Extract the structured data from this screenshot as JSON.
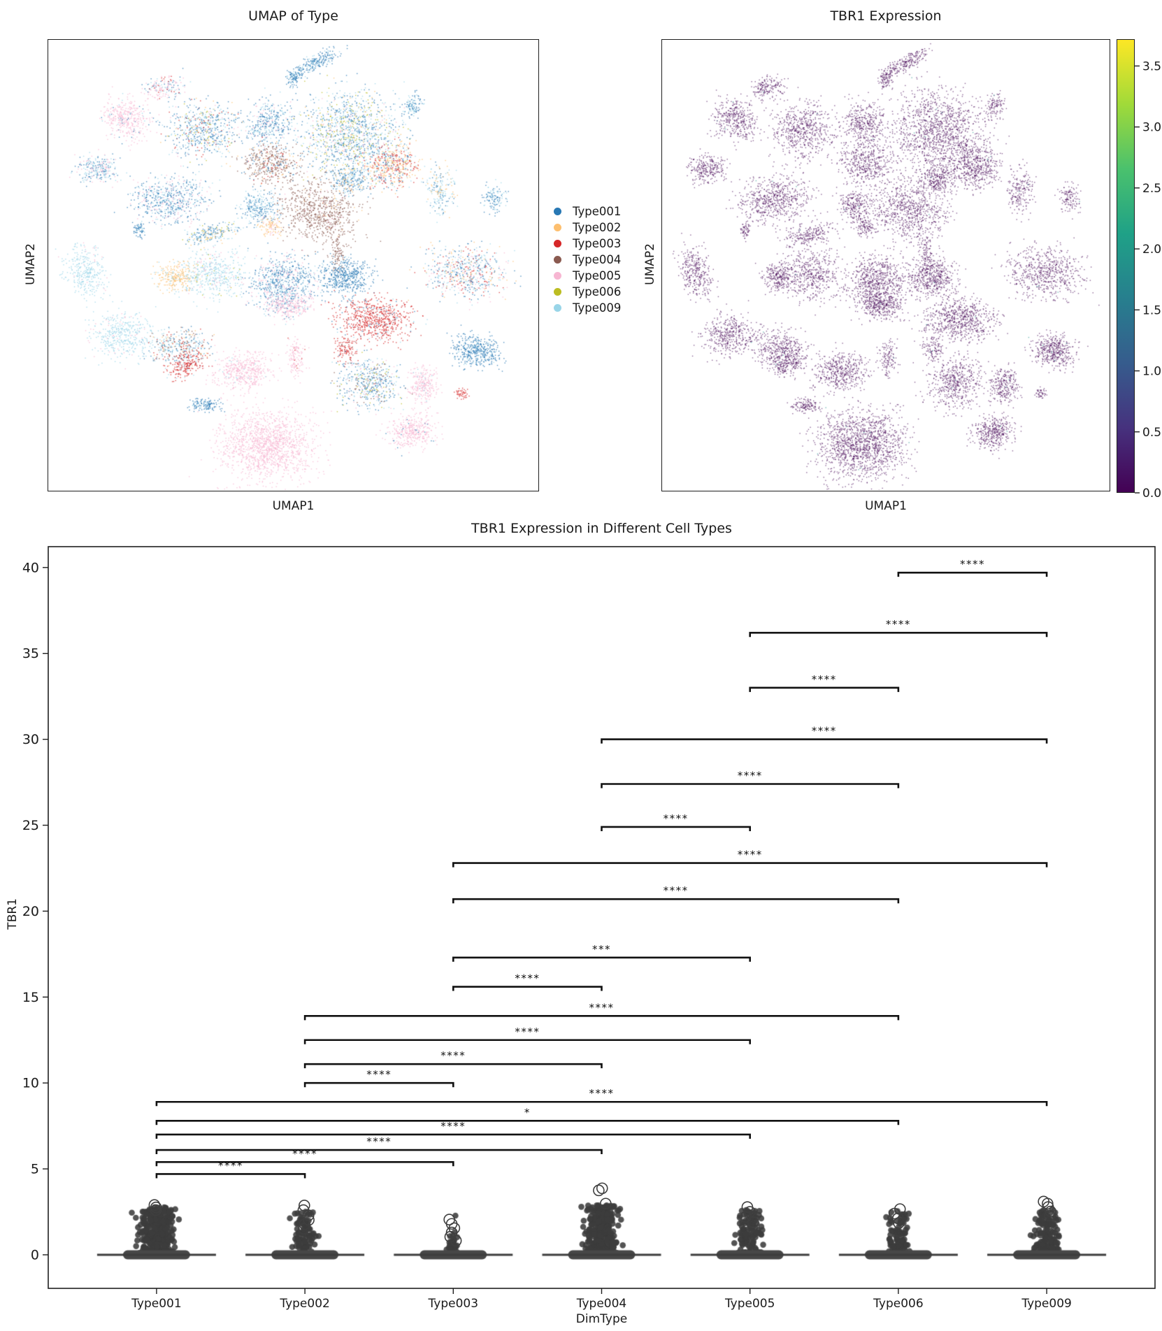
{
  "figure": {
    "background": "#ffffff"
  },
  "chart_data": [
    {
      "type": "scatter",
      "title": "UMAP of Type",
      "xlabel": "UMAP1",
      "ylabel": "UMAP2",
      "legend": [
        "Type001",
        "Type002",
        "Type003",
        "Type004",
        "Type005",
        "Type006",
        "Type009"
      ],
      "palette": {
        "Type001": "#2878b4",
        "Type002": "#fdbf6f",
        "Type003": "#d62728",
        "Type004": "#8a5a50",
        "Type005": "#f7b6d2",
        "Type006": "#bcbd22",
        "Type009": "#99d5e8"
      },
      "clusters": [
        {
          "x": 0.545,
          "y": 0.05,
          "rx": 0.055,
          "ry": 0.016,
          "rot": -28,
          "n": 220,
          "mix": {
            "Type001": 0.75,
            "Type009": 0.25
          }
        },
        {
          "x": 0.5,
          "y": 0.085,
          "rx": 0.015,
          "ry": 0.022,
          "rot": 0,
          "n": 90,
          "mix": {
            "Type001": 0.8,
            "Type009": 0.2
          }
        },
        {
          "x": 0.235,
          "y": 0.105,
          "rx": 0.038,
          "ry": 0.024,
          "rot": -15,
          "n": 170,
          "mix": {
            "Type005": 0.55,
            "Type001": 0.2,
            "Type009": 0.15,
            "Type003": 0.1
          }
        },
        {
          "x": 0.16,
          "y": 0.175,
          "rx": 0.05,
          "ry": 0.042,
          "rot": 20,
          "n": 380,
          "mix": {
            "Type005": 0.9,
            "Type001": 0.05,
            "Type009": 0.05
          }
        },
        {
          "x": 0.1,
          "y": 0.285,
          "rx": 0.042,
          "ry": 0.03,
          "rot": 0,
          "n": 260,
          "mix": {
            "Type001": 0.35,
            "Type005": 0.3,
            "Type009": 0.35
          }
        },
        {
          "x": 0.315,
          "y": 0.2,
          "rx": 0.068,
          "ry": 0.058,
          "rot": 0,
          "n": 600,
          "mix": {
            "Type001": 0.55,
            "Type009": 0.2,
            "Type002": 0.09,
            "Type003": 0.07,
            "Type006": 0.05,
            "Type005": 0.04
          }
        },
        {
          "x": 0.45,
          "y": 0.185,
          "rx": 0.048,
          "ry": 0.048,
          "rot": 0,
          "n": 380,
          "mix": {
            "Type001": 0.6,
            "Type009": 0.28,
            "Type005": 0.12
          }
        },
        {
          "x": 0.615,
          "y": 0.205,
          "rx": 0.105,
          "ry": 0.092,
          "rot": 0,
          "n": 1300,
          "mix": {
            "Type001": 0.42,
            "Type009": 0.3,
            "Type006": 0.13,
            "Type005": 0.08,
            "Type002": 0.07
          }
        },
        {
          "x": 0.7,
          "y": 0.28,
          "rx": 0.055,
          "ry": 0.05,
          "rot": 0,
          "n": 500,
          "mix": {
            "Type002": 0.38,
            "Type003": 0.38,
            "Type001": 0.12,
            "Type009": 0.12
          }
        },
        {
          "x": 0.455,
          "y": 0.275,
          "rx": 0.058,
          "ry": 0.042,
          "rot": 0,
          "n": 420,
          "mix": {
            "Type004": 0.72,
            "Type001": 0.14,
            "Type002": 0.07,
            "Type003": 0.07
          }
        },
        {
          "x": 0.555,
          "y": 0.38,
          "rx": 0.08,
          "ry": 0.065,
          "rot": 10,
          "n": 750,
          "mix": {
            "Type004": 0.9,
            "Type005": 0.05,
            "Type002": 0.05
          }
        },
        {
          "x": 0.59,
          "y": 0.475,
          "rx": 0.014,
          "ry": 0.045,
          "rot": 0,
          "n": 90,
          "mix": {
            "Type004": 1
          }
        },
        {
          "x": 0.25,
          "y": 0.355,
          "rx": 0.078,
          "ry": 0.052,
          "rot": -8,
          "n": 620,
          "mix": {
            "Type001": 0.5,
            "Type009": 0.28,
            "Type005": 0.22
          }
        },
        {
          "x": 0.33,
          "y": 0.43,
          "rx": 0.055,
          "ry": 0.02,
          "rot": -12,
          "n": 220,
          "mix": {
            "Type001": 0.45,
            "Type009": 0.3,
            "Type006": 0.1,
            "Type002": 0.15
          }
        },
        {
          "x": 0.43,
          "y": 0.37,
          "rx": 0.038,
          "ry": 0.036,
          "rot": 0,
          "n": 260,
          "mix": {
            "Type001": 0.6,
            "Type009": 0.4
          }
        },
        {
          "x": 0.455,
          "y": 0.415,
          "rx": 0.022,
          "ry": 0.02,
          "rot": 0,
          "n": 100,
          "mix": {
            "Type002": 0.8,
            "Type005": 0.2
          }
        },
        {
          "x": 0.075,
          "y": 0.515,
          "rx": 0.038,
          "ry": 0.058,
          "rot": -25,
          "n": 320,
          "mix": {
            "Type009": 0.96,
            "Type005": 0.04
          }
        },
        {
          "x": 0.26,
          "y": 0.525,
          "rx": 0.038,
          "ry": 0.032,
          "rot": 0,
          "n": 260,
          "mix": {
            "Type002": 0.85,
            "Type009": 0.15
          }
        },
        {
          "x": 0.335,
          "y": 0.52,
          "rx": 0.062,
          "ry": 0.058,
          "rot": 0,
          "n": 480,
          "mix": {
            "Type009": 0.85,
            "Type005": 0.1,
            "Type006": 0.05
          }
        },
        {
          "x": 0.48,
          "y": 0.54,
          "rx": 0.068,
          "ry": 0.062,
          "rot": 0,
          "n": 750,
          "mix": {
            "Type001": 0.6,
            "Type009": 0.22,
            "Type005": 0.18
          }
        },
        {
          "x": 0.49,
          "y": 0.59,
          "rx": 0.048,
          "ry": 0.028,
          "rot": 0,
          "n": 280,
          "mix": {
            "Type005": 0.85,
            "Type009": 0.15
          }
        },
        {
          "x": 0.605,
          "y": 0.525,
          "rx": 0.052,
          "ry": 0.042,
          "rot": 0,
          "n": 480,
          "mix": {
            "Type001": 0.92,
            "Type009": 0.08
          }
        },
        {
          "x": 0.665,
          "y": 0.62,
          "rx": 0.078,
          "ry": 0.047,
          "rot": 0,
          "n": 700,
          "mix": {
            "Type003": 0.85,
            "Type001": 0.08,
            "Type009": 0.07
          }
        },
        {
          "x": 0.855,
          "y": 0.515,
          "rx": 0.082,
          "ry": 0.055,
          "rot": 0,
          "n": 620,
          "mix": {
            "Type001": 0.3,
            "Type009": 0.25,
            "Type005": 0.18,
            "Type003": 0.15,
            "Type002": 0.12
          }
        },
        {
          "x": 0.15,
          "y": 0.655,
          "rx": 0.062,
          "ry": 0.05,
          "rot": 0,
          "n": 420,
          "mix": {
            "Type009": 0.92,
            "Type005": 0.08
          }
        },
        {
          "x": 0.265,
          "y": 0.68,
          "rx": 0.06,
          "ry": 0.04,
          "rot": 0,
          "n": 360,
          "mix": {
            "Type009": 0.35,
            "Type004": 0.25,
            "Type001": 0.2,
            "Type002": 0.12,
            "Type003": 0.08
          }
        },
        {
          "x": 0.28,
          "y": 0.72,
          "rx": 0.038,
          "ry": 0.026,
          "rot": -18,
          "n": 220,
          "mix": {
            "Type003": 0.85,
            "Type009": 0.15
          }
        },
        {
          "x": 0.4,
          "y": 0.735,
          "rx": 0.058,
          "ry": 0.042,
          "rot": 0,
          "n": 460,
          "mix": {
            "Type005": 0.95,
            "Type009": 0.05
          }
        },
        {
          "x": 0.505,
          "y": 0.705,
          "rx": 0.02,
          "ry": 0.042,
          "rot": 0,
          "n": 130,
          "mix": {
            "Type005": 0.9,
            "Type003": 0.1
          }
        },
        {
          "x": 0.605,
          "y": 0.685,
          "rx": 0.025,
          "ry": 0.028,
          "rot": 0,
          "n": 110,
          "mix": {
            "Type003": 0.9,
            "Type004": 0.1
          }
        },
        {
          "x": 0.655,
          "y": 0.76,
          "rx": 0.062,
          "ry": 0.055,
          "rot": 0,
          "n": 520,
          "mix": {
            "Type001": 0.38,
            "Type009": 0.3,
            "Type004": 0.14,
            "Type005": 0.1,
            "Type006": 0.08
          }
        },
        {
          "x": 0.875,
          "y": 0.69,
          "rx": 0.048,
          "ry": 0.036,
          "rot": 15,
          "n": 420,
          "mix": {
            "Type001": 0.9,
            "Type009": 0.1
          }
        },
        {
          "x": 0.765,
          "y": 0.765,
          "rx": 0.03,
          "ry": 0.042,
          "rot": 0,
          "n": 260,
          "mix": {
            "Type005": 0.92,
            "Type009": 0.08
          }
        },
        {
          "x": 0.445,
          "y": 0.9,
          "rx": 0.095,
          "ry": 0.075,
          "rot": 0,
          "n": 1400,
          "mix": {
            "Type005": 1
          }
        },
        {
          "x": 0.32,
          "y": 0.81,
          "rx": 0.032,
          "ry": 0.016,
          "rot": 0,
          "n": 130,
          "mix": {
            "Type001": 0.85,
            "Type009": 0.15
          }
        },
        {
          "x": 0.74,
          "y": 0.87,
          "rx": 0.048,
          "ry": 0.036,
          "rot": -10,
          "n": 380,
          "mix": {
            "Type005": 0.96,
            "Type001": 0.04
          }
        },
        {
          "x": 0.845,
          "y": 0.785,
          "rx": 0.012,
          "ry": 0.012,
          "rot": 0,
          "n": 45,
          "mix": {
            "Type003": 1
          }
        },
        {
          "x": 0.91,
          "y": 0.35,
          "rx": 0.022,
          "ry": 0.032,
          "rot": 0,
          "n": 120,
          "mix": {
            "Type001": 0.6,
            "Type009": 0.4
          }
        },
        {
          "x": 0.8,
          "y": 0.335,
          "rx": 0.028,
          "ry": 0.05,
          "rot": 0,
          "n": 200,
          "mix": {
            "Type009": 0.5,
            "Type001": 0.25,
            "Type002": 0.25
          }
        },
        {
          "x": 0.745,
          "y": 0.145,
          "rx": 0.02,
          "ry": 0.03,
          "rot": 25,
          "n": 110,
          "mix": {
            "Type001": 0.65,
            "Type009": 0.35
          }
        },
        {
          "x": 0.185,
          "y": 0.42,
          "rx": 0.012,
          "ry": 0.018,
          "rot": 0,
          "n": 60,
          "mix": {
            "Type001": 0.8,
            "Type009": 0.2
          }
        },
        {
          "x": 0.615,
          "y": 0.31,
          "rx": 0.04,
          "ry": 0.03,
          "rot": 0,
          "n": 250,
          "mix": {
            "Type001": 0.5,
            "Type009": 0.3,
            "Type002": 0.2
          }
        }
      ]
    },
    {
      "type": "scatter",
      "title": "TBR1 Expression",
      "xlabel": "UMAP1",
      "ylabel": "UMAP2",
      "point_color": "#440154",
      "accent_color": "#21918c",
      "colorbar": {
        "colormap": "viridis",
        "vmin": 0.0,
        "vmax": 3.72,
        "ticks": [
          0.0,
          0.5,
          1.0,
          1.5,
          2.0,
          2.5,
          3.0,
          3.5
        ],
        "gradient": [
          "#440154",
          "#46327e",
          "#365c8d",
          "#277f8e",
          "#1fa187",
          "#4ac16d",
          "#a0da39",
          "#fde725"
        ]
      }
    },
    {
      "type": "strip",
      "title": "TBR1 Expression in Different Cell Types",
      "xlabel": "DimType",
      "ylabel": "TBR1",
      "ylim": [
        -1.95,
        41.2
      ],
      "yticks": [
        0,
        5,
        10,
        15,
        20,
        25,
        30,
        35,
        40
      ],
      "point_color": "#3c3c3c",
      "categories": [
        {
          "label": "Type001",
          "n": 520,
          "jitter_sd": 24,
          "max": 2.78,
          "open_circles": [
            2.6,
            2.76,
            2.9
          ]
        },
        {
          "label": "Type002",
          "n": 150,
          "jitter_sd": 16,
          "max": 2.52,
          "open_circles": [
            1.52,
            1.78,
            2.03,
            2.3,
            2.6,
            2.87
          ]
        },
        {
          "label": "Type003",
          "n": 40,
          "jitter_sd": 8,
          "max": 1.15,
          "open_circles": [
            0.82,
            1.05,
            1.3,
            1.55,
            1.8,
            2.05
          ],
          "dots": [
            1.32,
            2.28
          ]
        },
        {
          "label": "Type004",
          "n": 560,
          "jitter_sd": 22,
          "max": 2.88,
          "open_circles": [
            2.98,
            3.75,
            3.87
          ]
        },
        {
          "label": "Type005",
          "n": 170,
          "jitter_sd": 18,
          "max": 2.62,
          "open_circles": [
            1.9,
            2.2,
            2.5,
            2.78
          ]
        },
        {
          "label": "Type006",
          "n": 140,
          "jitter_sd": 17,
          "max": 2.56,
          "open_circles": [
            1.85,
            2.12,
            2.4,
            2.66
          ]
        },
        {
          "label": "Type009",
          "n": 240,
          "jitter_sd": 17,
          "max": 2.72,
          "open_circles": [
            2.28,
            2.52,
            2.78,
            2.98,
            3.1
          ]
        }
      ],
      "significance": [
        {
          "a": "Type006",
          "b": "Type009",
          "label": "****",
          "y": 39.7
        },
        {
          "a": "Type005",
          "b": "Type009",
          "label": "****",
          "y": 36.2
        },
        {
          "a": "Type005",
          "b": "Type006",
          "label": "****",
          "y": 33.0
        },
        {
          "a": "Type004",
          "b": "Type009",
          "label": "****",
          "y": 30.0
        },
        {
          "a": "Type004",
          "b": "Type006",
          "label": "****",
          "y": 27.4
        },
        {
          "a": "Type004",
          "b": "Type005",
          "label": "****",
          "y": 24.9
        },
        {
          "a": "Type003",
          "b": "Type009",
          "label": "****",
          "y": 22.8
        },
        {
          "a": "Type003",
          "b": "Type006",
          "label": "****",
          "y": 20.7
        },
        {
          "a": "Type003",
          "b": "Type005",
          "label": "***",
          "y": 17.3
        },
        {
          "a": "Type003",
          "b": "Type004",
          "label": "****",
          "y": 15.6
        },
        {
          "a": "Type002",
          "b": "Type006",
          "label": "****",
          "y": 13.9
        },
        {
          "a": "Type002",
          "b": "Type005",
          "label": "****",
          "y": 12.5
        },
        {
          "a": "Type002",
          "b": "Type004",
          "label": "****",
          "y": 11.1
        },
        {
          "a": "Type002",
          "b": "Type003",
          "label": "****",
          "y": 10.0
        },
        {
          "a": "Type001",
          "b": "Type009",
          "label": "****",
          "y": 8.9
        },
        {
          "a": "Type001",
          "b": "Type006",
          "label": "*",
          "y": 7.8
        },
        {
          "a": "Type001",
          "b": "Type005",
          "label": "****",
          "y": 7.0
        },
        {
          "a": "Type001",
          "b": "Type004",
          "label": "****",
          "y": 6.1
        },
        {
          "a": "Type001",
          "b": "Type003",
          "label": "****",
          "y": 5.4
        },
        {
          "a": "Type001",
          "b": "Type002",
          "label": "****",
          "y": 4.7
        }
      ]
    }
  ]
}
